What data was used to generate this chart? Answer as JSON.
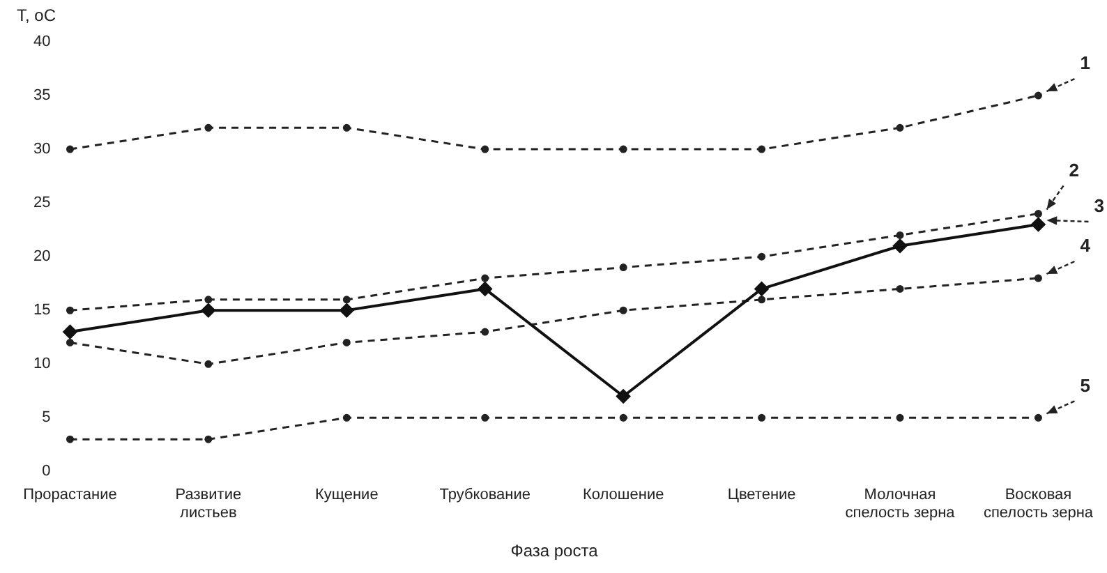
{
  "chart_data": {
    "type": "line",
    "ylabel": "T, oC",
    "xlabel": "Фаза роста",
    "categories": [
      "Прорастание",
      "Развитие листьев",
      "Кущение",
      "Трубкование",
      "Колошение",
      "Цветение",
      "Молочная спелость зерна",
      "Восковая спелость зерна"
    ],
    "ylim": [
      0,
      40
    ],
    "yticks": [
      0,
      5,
      10,
      15,
      20,
      25,
      30,
      35,
      40
    ],
    "grid": false,
    "legend": false,
    "marker": "circle",
    "line_style": "dashed",
    "series": [
      {
        "color": "#222222",
        "values": [
          30,
          32,
          32,
          30,
          30,
          30,
          32,
          35
        ]
      },
      {
        "color": "#222222",
        "values": [
          15,
          16,
          16,
          18,
          19,
          20,
          22,
          24
        ]
      },
      {
        "color": "#111111",
        "values": [
          13,
          15,
          15,
          17,
          7,
          17,
          21,
          23
        ],
        "line_style": "solid",
        "marker": "diamond"
      },
      {
        "color": "#222222",
        "values": [
          12,
          10,
          12,
          13,
          15,
          16,
          17,
          18
        ]
      },
      {
        "color": "#222222",
        "values": [
          3,
          3,
          5,
          5,
          5,
          5,
          5,
          5
        ]
      }
    ],
    "annotations": [
      {
        "text": "1",
        "x": "Восковая спелость зерна",
        "y": 35
      },
      {
        "text": "2",
        "x": "Восковая спелость зерна",
        "y": 24
      },
      {
        "text": "3",
        "x": "Восковая спелость зерна",
        "y": 23
      },
      {
        "text": "4",
        "x": "Восковая спелость зерна",
        "y": 18
      },
      {
        "text": "5",
        "x": "Восковая спелость зерна",
        "y": 5
      }
    ]
  }
}
